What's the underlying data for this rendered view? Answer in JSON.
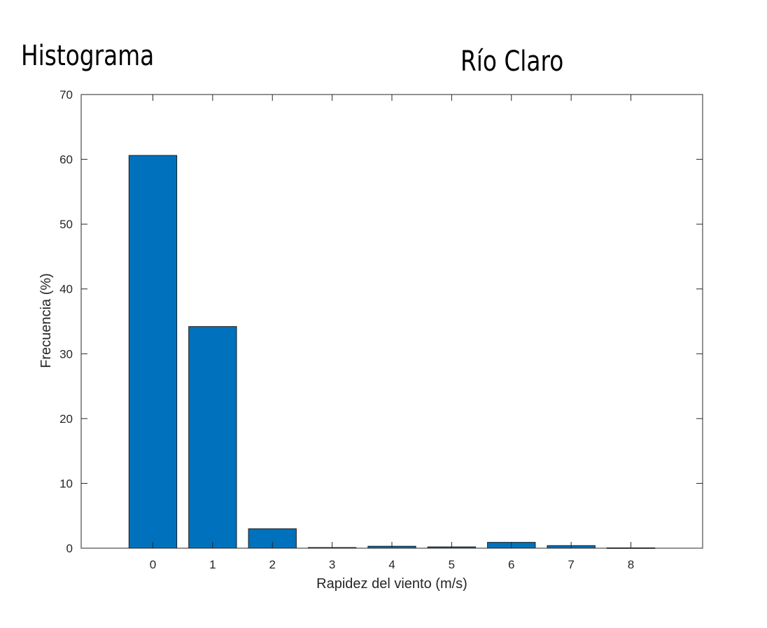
{
  "labels": {
    "left": "Histograma",
    "right": "Río Claro"
  },
  "chart_data": {
    "type": "bar",
    "categories": [
      "0",
      "1",
      "2",
      "3",
      "4",
      "5",
      "6",
      "7",
      "8"
    ],
    "x": [
      0,
      1,
      2,
      3,
      4,
      5,
      6,
      7,
      8
    ],
    "values": [
      60.6,
      34.2,
      3.0,
      0.1,
      0.3,
      0.2,
      0.9,
      0.4,
      0.05
    ],
    "xlabel": "Rapidez del viento (m/s)",
    "ylabel": "Frecuencia (%)",
    "xlim": [
      -1.2,
      9.2
    ],
    "ylim": [
      0,
      70
    ],
    "yticks": [
      0,
      10,
      20,
      30,
      40,
      50,
      60,
      70
    ],
    "xticks": [
      0,
      1,
      2,
      3,
      4,
      5,
      6,
      7,
      8
    ],
    "bar_color": "#0072bd",
    "edge_color": "#1a1a1a",
    "grid": false,
    "box": true
  }
}
